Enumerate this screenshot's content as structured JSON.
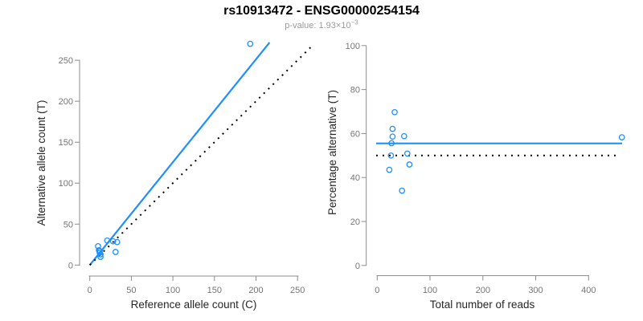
{
  "header": {
    "title": "rs10913472 - ENSG00000254154",
    "subtitle_prefix": "p-value: 1.93×10",
    "subtitle_superscript": "−3"
  },
  "colors": {
    "accent_blue": "#1E8FFF",
    "line_black": "#000000",
    "axis": "#8C8C8C",
    "tick_text": "#757575",
    "label_text": "#262626",
    "title_text": "#000000",
    "subtitle_text": "#9A9A9A",
    "background": "#FFFFFF"
  },
  "chart_data": [
    {
      "name": "allele-counts-scatter",
      "type": "scatter",
      "xlabel": "Reference allele count (C)",
      "ylabel": "Alternative allele count (T)",
      "xlim": [
        0,
        250
      ],
      "ylim": [
        0,
        270
      ],
      "xticks": [
        0,
        50,
        100,
        150,
        200,
        250
      ],
      "yticks": [
        0,
        50,
        100,
        150,
        200,
        250
      ],
      "grid": false,
      "legend": "none",
      "points": [
        [
          10,
          23
        ],
        [
          11,
          18
        ],
        [
          12,
          17
        ],
        [
          21,
          30
        ],
        [
          12,
          15
        ],
        [
          13,
          13
        ],
        [
          28,
          29
        ],
        [
          33,
          28
        ],
        [
          13,
          10
        ],
        [
          31,
          16
        ],
        [
          193,
          270
        ]
      ],
      "lines": [
        {
          "kind": "regression",
          "slope": 1.256,
          "intercept": 0,
          "style": "solid",
          "color": "#1E8FFF"
        },
        {
          "kind": "identity",
          "slope": 1,
          "intercept": 0,
          "style": "dotted",
          "color": "#000000"
        }
      ]
    },
    {
      "name": "percentage-vs-reads-scatter",
      "type": "scatter",
      "xlabel": "Total number of reads",
      "ylabel": "Percentage alternative (T)",
      "xlim": [
        0,
        463
      ],
      "ylim": [
        0,
        100
      ],
      "xticks": [
        0,
        100,
        200,
        300,
        400
      ],
      "yticks": [
        0,
        20,
        40,
        60,
        80,
        100
      ],
      "grid": false,
      "legend": "none",
      "points": [
        [
          33,
          69.7
        ],
        [
          29,
          62.1
        ],
        [
          29,
          58.6
        ],
        [
          51,
          58.8
        ],
        [
          27,
          55.6
        ],
        [
          26,
          50
        ],
        [
          57,
          50.9
        ],
        [
          61,
          45.9
        ],
        [
          23,
          43.5
        ],
        [
          47,
          34
        ],
        [
          463,
          58.3
        ]
      ],
      "lines": [
        {
          "kind": "mean",
          "value": 55.5,
          "style": "solid",
          "color": "#1E8FFF"
        },
        {
          "kind": "expected",
          "value": 50,
          "style": "dotted",
          "color": "#000000"
        }
      ]
    }
  ]
}
